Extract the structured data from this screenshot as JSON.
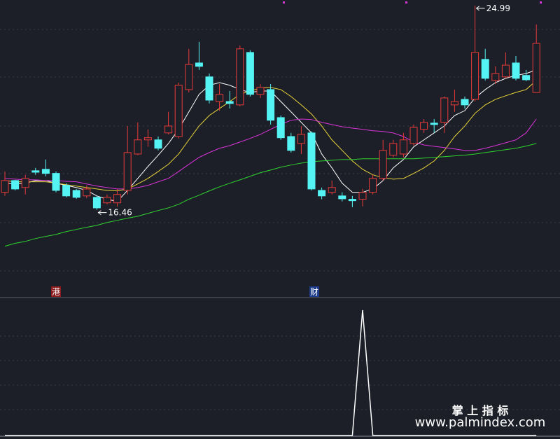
{
  "chart_data": {
    "type": "candlestick",
    "ylim": [
      13.0,
      25.22
    ],
    "up_color": "#e83a3a",
    "down_color": "#54f4f4",
    "open": [
      17.19,
      17.68,
      17.39,
      18.09,
      18.15,
      17.98,
      17.48,
      17.27,
      17.04,
      16.98,
      16.75,
      16.75,
      17.27,
      18.79,
      19.38,
      19.38,
      19.67,
      19.52,
      21.48,
      22.59,
      22.01,
      20.98,
      20.98,
      20.84,
      23.03,
      21.28,
      21.48,
      20.31,
      19.52,
      19.23,
      19.67,
      17.27,
      17.19,
      17.04,
      16.9,
      16.9,
      17.19,
      17.77,
      18.74,
      18.79,
      19.23,
      19.82,
      20.08,
      20.11,
      20.84,
      21.07,
      21.07,
      22.74,
      21.86,
      22.01,
      22.59,
      22.07,
      21.36
    ],
    "high": [
      18.06,
      17.71,
      17.92,
      18.21,
      18.56,
      18.06,
      17.57,
      17.33,
      17.48,
      17.04,
      17.1,
      17.33,
      19.96,
      20.11,
      19.82,
      19.52,
      20.55,
      21.77,
      23.18,
      23.47,
      22.15,
      21.71,
      21.42,
      23.32,
      23.12,
      21.71,
      21.71,
      20.4,
      19.67,
      19.96,
      19.73,
      17.39,
      17.68,
      17.19,
      17.04,
      17.33,
      17.92,
      19.38,
      19.38,
      19.67,
      20.02,
      20.25,
      20.25,
      21.19,
      21.48,
      21.19,
      24.99,
      23.18,
      22.45,
      23.03,
      22.88,
      22.3,
      24.2
    ],
    "low": [
      17.04,
      17.27,
      17.1,
      17.92,
      17.86,
      17.19,
      16.98,
      16.92,
      16.95,
      16.46,
      16.69,
      16.6,
      17.1,
      18.74,
      19.09,
      18.94,
      19.61,
      19.44,
      21.36,
      22.3,
      20.9,
      20.6,
      20.69,
      20.78,
      21.19,
      21.13,
      20.02,
      19.38,
      18.85,
      18.79,
      17.27,
      16.9,
      17.1,
      16.81,
      16.57,
      16.6,
      17.1,
      17.68,
      18.65,
      18.65,
      19.14,
      19.67,
      19.67,
      19.67,
      20.55,
      20.69,
      20.98,
      21.86,
      21.71,
      21.95,
      21.86,
      21.83,
      21.36
    ],
    "close": [
      17.68,
      17.33,
      17.77,
      18.03,
      17.98,
      17.27,
      17.04,
      16.98,
      17.33,
      16.54,
      16.98,
      17.1,
      18.85,
      19.38,
      19.47,
      19.03,
      19.96,
      21.66,
      22.53,
      22.45,
      21.04,
      21.28,
      20.9,
      23.18,
      21.28,
      21.57,
      20.2,
      19.47,
      18.94,
      19.61,
      17.33,
      17.04,
      17.39,
      16.92,
      16.84,
      17.19,
      17.77,
      18.94,
      19.23,
      19.38,
      19.9,
      20.11,
      20.02,
      21.13,
      20.98,
      20.84,
      23.03,
      21.95,
      22.15,
      22.5,
      21.95,
      21.89,
      23.41
    ],
    "lines": [
      {
        "color": "#ffffff",
        "values": [
          17.57,
          17.54,
          17.57,
          17.68,
          17.68,
          17.57,
          17.48,
          17.39,
          17.27,
          17.04,
          16.9,
          16.81,
          17.27,
          17.77,
          18.27,
          18.74,
          19.23,
          19.82,
          20.55,
          21.28,
          21.66,
          21.77,
          21.66,
          21.48,
          21.36,
          21.42,
          21.42,
          20.98,
          20.55,
          20.11,
          19.67,
          18.79,
          18.21,
          17.57,
          17.19,
          17.19,
          17.33,
          17.68,
          18.21,
          18.56,
          19.09,
          19.38,
          19.67,
          19.96,
          20.4,
          20.6,
          21.13,
          21.48,
          21.77,
          21.95,
          22.07,
          22.15,
          22.3
        ]
      },
      {
        "color": "#e8d43a",
        "values": [
          17.68,
          17.63,
          17.63,
          17.63,
          17.63,
          17.57,
          17.51,
          17.45,
          17.39,
          17.33,
          17.27,
          17.25,
          17.33,
          17.54,
          17.77,
          18.06,
          18.36,
          18.79,
          19.38,
          19.96,
          20.4,
          20.69,
          20.98,
          21.28,
          21.42,
          21.54,
          21.57,
          21.48,
          21.19,
          20.84,
          20.46,
          19.96,
          19.38,
          18.94,
          18.5,
          18.15,
          17.92,
          17.8,
          17.74,
          17.77,
          17.98,
          18.21,
          18.5,
          18.94,
          19.52,
          19.96,
          20.49,
          20.84,
          21.07,
          21.22,
          21.36,
          21.48,
          21.86
        ]
      },
      {
        "color": "#d834d8",
        "values": [
          17.77,
          17.74,
          17.71,
          17.71,
          17.68,
          17.68,
          17.65,
          17.63,
          17.54,
          17.45,
          17.39,
          17.33,
          17.33,
          17.39,
          17.48,
          17.63,
          17.77,
          18.06,
          18.36,
          18.65,
          18.85,
          19.03,
          19.14,
          19.29,
          19.44,
          19.61,
          19.82,
          20.02,
          20.2,
          20.25,
          20.23,
          20.11,
          20.02,
          19.93,
          19.87,
          19.82,
          19.76,
          19.73,
          19.67,
          19.52,
          19.29,
          19.17,
          19.11,
          19.06,
          19.0,
          18.94,
          18.94,
          19.03,
          19.14,
          19.26,
          19.38,
          19.67,
          20.25
        ]
      },
      {
        "color": "#2fd42f",
        "values": [
          14.94,
          15.06,
          15.14,
          15.26,
          15.35,
          15.43,
          15.55,
          15.64,
          15.73,
          15.81,
          15.93,
          16.02,
          16.11,
          16.19,
          16.31,
          16.43,
          16.54,
          16.69,
          16.9,
          17.07,
          17.25,
          17.42,
          17.57,
          17.71,
          17.86,
          18.01,
          18.12,
          18.24,
          18.33,
          18.41,
          18.47,
          18.5,
          18.53,
          18.56,
          18.56,
          18.59,
          18.59,
          18.59,
          18.59,
          18.59,
          18.59,
          18.62,
          18.65,
          18.68,
          18.71,
          18.74,
          18.79,
          18.85,
          18.91,
          18.97,
          19.03,
          19.12,
          19.23
        ]
      }
    ],
    "annotations": [
      24.99,
      16.46
    ],
    "event_labels": [
      "港",
      "财"
    ],
    "indicator": {
      "type": "line",
      "color": "#ffffff",
      "ylim": [
        0,
        1.1
      ],
      "values": [
        0,
        0,
        0,
        0,
        0,
        0,
        0,
        0,
        0,
        0,
        0,
        0,
        0,
        0,
        0,
        0,
        0,
        0,
        0,
        0,
        0,
        0,
        0,
        0,
        0,
        0,
        0,
        0,
        0,
        0,
        0,
        0,
        0,
        0,
        0,
        1,
        0,
        0,
        0,
        0,
        0,
        0,
        0,
        0,
        0,
        0,
        0,
        0,
        0,
        0,
        0,
        0,
        0
      ]
    }
  },
  "watermark": {
    "title": "掌 上 指 标",
    "url": "www.palmindex.com"
  }
}
